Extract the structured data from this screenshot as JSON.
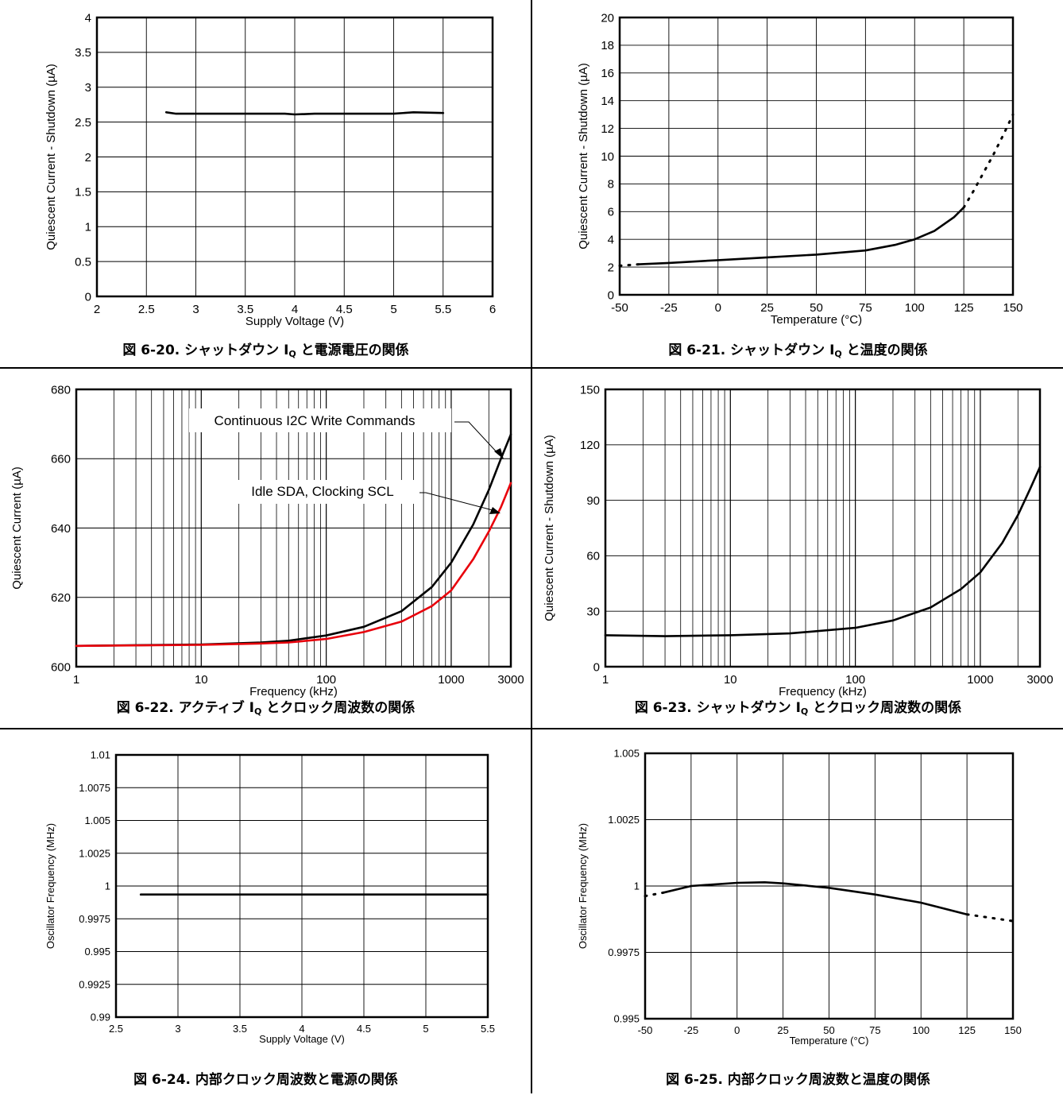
{
  "charts": [
    {
      "title": "図 6-20. シャットダウン I",
      "title_sub": "Q",
      "title_rest": " と電源電圧の関係",
      "xlabel": "Supply Voltage (V)",
      "ylabel": "Quiescent Current - Shutdown (µA)",
      "xticks": [
        "2",
        "2.5",
        "3",
        "3.5",
        "4",
        "4.5",
        "5",
        "5.5",
        "6"
      ],
      "yticks": [
        "0",
        "0.5",
        "1",
        "1.5",
        "2",
        "2.5",
        "3",
        "3.5",
        "4"
      ]
    },
    {
      "title": "図 6-21. シャットダウン I",
      "title_sub": "Q",
      "title_rest": " と温度の関係",
      "xlabel": "Temperature (°C)",
      "ylabel": "Quiescent Current - Shutdown (µA)",
      "xticks": [
        "-50",
        "-25",
        "0",
        "25",
        "50",
        "75",
        "100",
        "125",
        "150"
      ],
      "yticks": [
        "0",
        "2",
        "4",
        "6",
        "8",
        "10",
        "12",
        "14",
        "16",
        "18",
        "20"
      ]
    },
    {
      "title": "図 6-22. アクティブ I",
      "title_sub": "Q",
      "title_rest": " とクロック周波数の関係",
      "xlabel": "Frequency (kHz)",
      "ylabel": "Quiescent Current (µA)",
      "xticks": [
        "1",
        "10",
        "100",
        "1000",
        "3000"
      ],
      "yticks": [
        "600",
        "620",
        "640",
        "660",
        "680"
      ],
      "annotations": [
        "Continuous I2C Write Commands",
        "Idle SDA, Clocking SCL"
      ]
    },
    {
      "title": "図 6-23. シャットダウン I",
      "title_sub": "Q",
      "title_rest": " とクロック周波数の関係",
      "xlabel": "Frequency (kHz)",
      "ylabel": "Quiescent Current - Shutdown (µA)",
      "xticks": [
        "1",
        "10",
        "100",
        "1000",
        "3000"
      ],
      "yticks": [
        "0",
        "30",
        "60",
        "90",
        "120",
        "150"
      ]
    },
    {
      "title": "図 6-24. 内部クロック周波数と電源の関係",
      "title_sub": "",
      "title_rest": "",
      "xlabel": "Supply Voltage (V)",
      "ylabel": "Oscillator Frequency (MHz)",
      "xticks": [
        "2.5",
        "3",
        "3.5",
        "4",
        "4.5",
        "5",
        "5.5"
      ],
      "yticks": [
        "0.99",
        "0.9925",
        "0.995",
        "0.9975",
        "1",
        "1.0025",
        "1.005",
        "1.0075",
        "1.01"
      ]
    },
    {
      "title": "図 6-25. 内部クロック周波数と温度の関係",
      "title_sub": "",
      "title_rest": "",
      "xlabel": "Temperature (°C)",
      "ylabel": "Oscillator Frequency (MHz)",
      "xticks": [
        "-50",
        "-25",
        "0",
        "25",
        "50",
        "75",
        "100",
        "125",
        "150"
      ],
      "yticks": [
        "0.995",
        "0.9975",
        "1",
        "1.0025",
        "1.005"
      ]
    }
  ],
  "chart_data": [
    {
      "type": "line",
      "xlabel": "Supply Voltage (V)",
      "ylabel": "Quiescent Current - Shutdown (µA)",
      "xlim": [
        2,
        6
      ],
      "ylim": [
        0,
        4
      ],
      "grid": true,
      "series": [
        {
          "x": [
            2.7,
            2.8,
            3.0,
            3.5,
            3.9,
            4.0,
            4.2,
            4.5,
            5.0,
            5.2,
            5.5
          ],
          "y": [
            2.64,
            2.62,
            2.62,
            2.62,
            2.62,
            2.61,
            2.62,
            2.62,
            2.62,
            2.64,
            2.63
          ],
          "color": "#000000"
        }
      ]
    },
    {
      "type": "line",
      "xlabel": "Temperature (°C)",
      "ylabel": "Quiescent Current - Shutdown (µA)",
      "xlim": [
        -50,
        150
      ],
      "ylim": [
        0,
        20
      ],
      "grid": true,
      "series": [
        {
          "x": [
            -40,
            -25,
            0,
            25,
            50,
            75,
            90,
            100,
            110,
            120,
            125
          ],
          "y": [
            2.2,
            2.3,
            2.5,
            2.7,
            2.9,
            3.2,
            3.6,
            4.0,
            4.6,
            5.6,
            6.3
          ],
          "color": "#000000"
        },
        {
          "x": [
            -50,
            -40
          ],
          "y": [
            2.1,
            2.2
          ],
          "color": "#000000",
          "dashed": true
        },
        {
          "x": [
            125,
            130,
            135,
            140,
            145,
            150
          ],
          "y": [
            6.3,
            7.5,
            8.8,
            10.1,
            11.5,
            13.0
          ],
          "color": "#000000",
          "dashed": true
        }
      ]
    },
    {
      "type": "line",
      "xlabel": "Frequency (kHz)",
      "ylabel": "Quiescent Current (µA)",
      "xscale": "log",
      "xlim": [
        1,
        3000
      ],
      "ylim": [
        600,
        680
      ],
      "grid": true,
      "series": [
        {
          "name": "Continuous I2C Write Commands",
          "x": [
            1,
            10,
            30,
            50,
            100,
            200,
            400,
            700,
            1000,
            1500,
            2000,
            2500,
            3000
          ],
          "y": [
            606,
            606.4,
            607,
            607.5,
            609,
            611.5,
            616,
            623,
            630,
            641,
            651,
            660,
            667
          ],
          "color": "#000000"
        },
        {
          "name": "Idle SDA, Clocking SCL",
          "x": [
            1,
            10,
            30,
            50,
            100,
            200,
            400,
            700,
            1000,
            1500,
            2000,
            2500,
            3000
          ],
          "y": [
            606,
            606.3,
            606.7,
            607,
            608,
            610,
            613,
            617.5,
            622,
            631,
            639,
            646,
            653
          ],
          "color": "#e8000b"
        }
      ]
    },
    {
      "type": "line",
      "xlabel": "Frequency (kHz)",
      "ylabel": "Quiescent Current - Shutdown (µA)",
      "xscale": "log",
      "xlim": [
        1,
        3000
      ],
      "ylim": [
        0,
        150
      ],
      "grid": true,
      "series": [
        {
          "x": [
            1,
            3,
            10,
            30,
            100,
            200,
            400,
            700,
            1000,
            1500,
            2000,
            2500,
            3000
          ],
          "y": [
            17,
            16.5,
            17,
            18,
            21,
            25,
            32,
            42,
            51,
            67,
            82,
            96,
            108
          ],
          "color": "#000000"
        }
      ]
    },
    {
      "type": "line",
      "xlabel": "Supply Voltage (V)",
      "ylabel": "Oscillator Frequency (MHz)",
      "xlim": [
        2.5,
        5.5
      ],
      "ylim": [
        0.99,
        1.01
      ],
      "grid": true,
      "series": [
        {
          "x": [
            2.7,
            5.5
          ],
          "y": [
            0.99935,
            0.99935
          ],
          "color": "#000000"
        }
      ]
    },
    {
      "type": "line",
      "xlabel": "Temperature (°C)",
      "ylabel": "Oscillator Frequency (MHz)",
      "xlim": [
        -50,
        150
      ],
      "ylim": [
        0.995,
        1.005
      ],
      "grid": true,
      "series": [
        {
          "x": [
            -40,
            -25,
            0,
            15,
            25,
            50,
            75,
            100,
            125
          ],
          "y": [
            0.99975,
            1.0,
            1.00012,
            1.00014,
            1.0001,
            0.99993,
            0.99968,
            0.99937,
            0.99893
          ],
          "color": "#000000"
        },
        {
          "x": [
            -50,
            -40
          ],
          "y": [
            0.99962,
            0.99975
          ],
          "color": "#000000",
          "dashed": true
        },
        {
          "x": [
            125,
            150
          ],
          "y": [
            0.99893,
            0.99868
          ],
          "color": "#000000",
          "dashed": true
        }
      ]
    }
  ]
}
